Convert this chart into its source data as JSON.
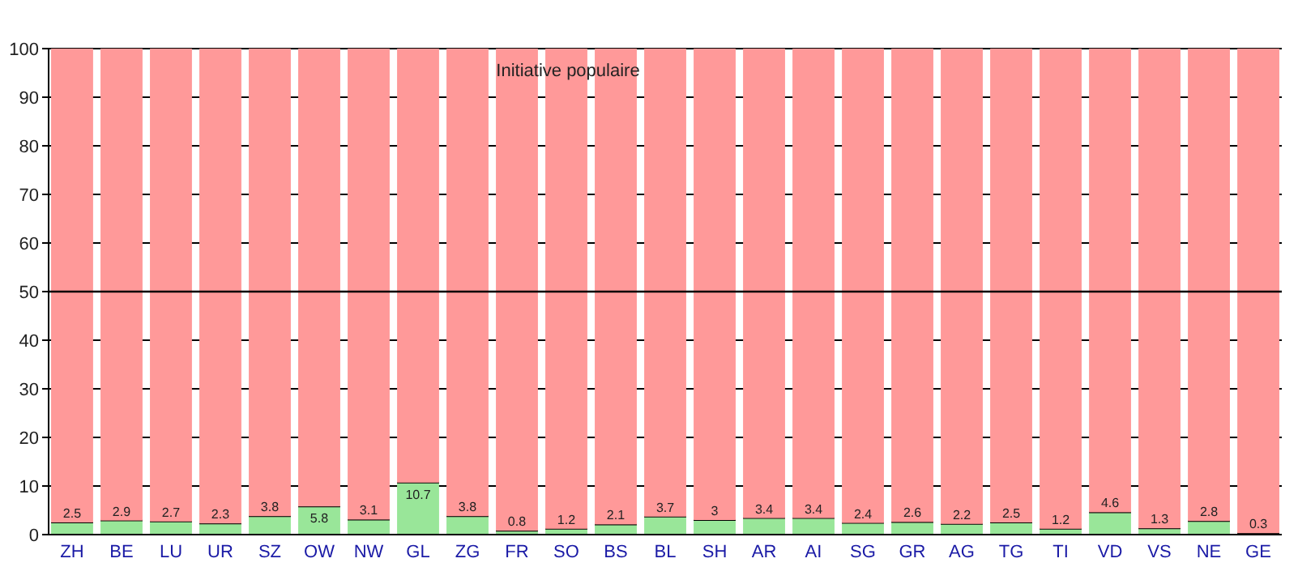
{
  "chart_data": {
    "type": "bar",
    "title": "Initiative populaire",
    "stacked": true,
    "categories": [
      "ZH",
      "BE",
      "LU",
      "UR",
      "SZ",
      "OW",
      "NW",
      "GL",
      "ZG",
      "FR",
      "SO",
      "BS",
      "BL",
      "SH",
      "AR",
      "AI",
      "SG",
      "GR",
      "AG",
      "TG",
      "TI",
      "VD",
      "VS",
      "NE",
      "GE"
    ],
    "series": [
      {
        "color": "#99e699",
        "values": [
          2.5,
          2.9,
          2.7,
          2.3,
          3.8,
          5.8,
          3.1,
          10.7,
          3.8,
          0.8,
          1.2,
          2.1,
          3.7,
          3,
          3.4,
          3.4,
          2.4,
          2.6,
          2.2,
          2.5,
          1.2,
          4.6,
          1.3,
          2.8,
          0.3
        ],
        "value_labels": [
          "2.5",
          "2.9",
          "2.7",
          "2.3",
          "3.8",
          "5.8",
          "3.1",
          "10.7",
          "3.8",
          "0.8",
          "1.2",
          "2.1",
          "3.7",
          "3",
          "3.4",
          "3.4",
          "2.4",
          "2.6",
          "2.2",
          "2.5",
          "1.2",
          "4.6",
          "1.3",
          "2.8",
          "0.3"
        ]
      },
      {
        "color": "#ff9999",
        "values": [
          97.5,
          97.1,
          97.3,
          97.7,
          96.2,
          94.2,
          96.9,
          89.3,
          96.2,
          99.2,
          98.8,
          97.9,
          96.3,
          97,
          96.6,
          96.6,
          97.6,
          97.4,
          97.8,
          97.5,
          98.8,
          95.4,
          98.7,
          97.2,
          99.7
        ]
      }
    ],
    "ylim": [
      0,
      100
    ],
    "yticks": [
      0,
      10,
      20,
      30,
      40,
      50,
      60,
      70,
      80,
      90,
      100
    ],
    "grid": "y",
    "ref_lines": [
      {
        "axis": "y",
        "value": 50
      }
    ]
  }
}
